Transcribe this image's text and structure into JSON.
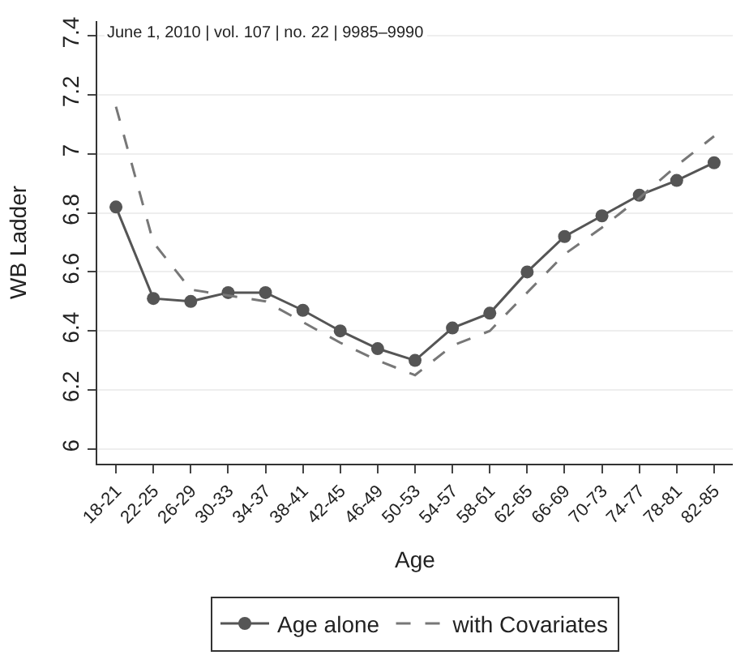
{
  "chart_data": {
    "type": "line",
    "xlabel": "Age",
    "ylabel": "WB Ladder",
    "categories": [
      "18-21",
      "22-25",
      "26-29",
      "30-33",
      "34-37",
      "38-41",
      "42-45",
      "46-49",
      "50-53",
      "54-57",
      "58-61",
      "62-65",
      "66-69",
      "70-73",
      "74-77",
      "78-81",
      "82-85"
    ],
    "series": [
      {
        "name": "Age alone",
        "color": "#555555",
        "marker": "circle",
        "line_style": "solid",
        "values": [
          6.82,
          6.51,
          6.5,
          6.53,
          6.53,
          6.47,
          6.4,
          6.34,
          6.3,
          6.41,
          6.46,
          6.6,
          6.72,
          6.79,
          6.86,
          6.91,
          6.97
        ]
      },
      {
        "name": "with Covariates",
        "color": "#777777",
        "marker": "none",
        "line_style": "dashed",
        "values": [
          7.16,
          6.7,
          6.54,
          6.52,
          6.5,
          6.43,
          6.36,
          6.3,
          6.25,
          6.35,
          6.4,
          6.53,
          6.66,
          6.75,
          6.85,
          6.96,
          7.06
        ]
      }
    ],
    "ylim": [
      5.95,
      7.45
    ],
    "yticks": [
      6,
      6.2,
      6.4,
      6.6,
      6.8,
      7,
      7.2,
      7.4
    ],
    "grid": "y",
    "legend": "bottom",
    "annotations": [
      "June 1, 2010 | vol. 107 | no. 22 | 9985–9990"
    ]
  }
}
